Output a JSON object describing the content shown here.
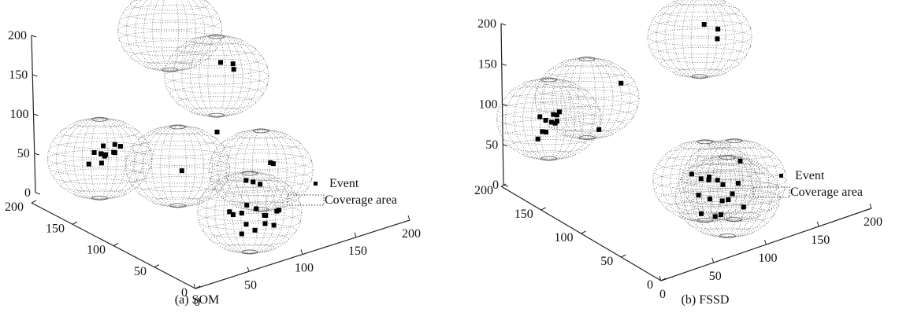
{
  "chart_data": [
    {
      "type": "scatter",
      "title": "",
      "caption": "(a) SOM",
      "axis_ticks": {
        "z": [
          "0",
          "50",
          "100",
          "150",
          "200"
        ],
        "y": [
          "0",
          "50",
          "100",
          "150",
          "200"
        ],
        "x": [
          "0",
          "50",
          "100",
          "150",
          "200"
        ]
      },
      "xlim": [
        0,
        200
      ],
      "ylim": [
        0,
        200
      ],
      "zlim": [
        0,
        200
      ],
      "legend": {
        "event_label": "Event",
        "coverage_label": "Coverage area",
        "position": "right"
      },
      "coverage_spheres": [
        {
          "x": 110,
          "y": 175,
          "z": 185
        },
        {
          "x": 10,
          "y": 130,
          "z": 90
        },
        {
          "x": 60,
          "y": 100,
          "z": 75
        },
        {
          "x": 130,
          "y": 90,
          "z": 45
        },
        {
          "x": 85,
          "y": 45,
          "z": 35
        },
        {
          "x": 165,
          "y": 190,
          "z": 95
        }
      ],
      "events": [
        {
          "x": 5,
          "y": 130,
          "z": 100
        },
        {
          "x": 10,
          "y": 128,
          "z": 97
        },
        {
          "x": 15,
          "y": 132,
          "z": 103
        },
        {
          "x": 20,
          "y": 126,
          "z": 96
        },
        {
          "x": 25,
          "y": 131,
          "z": 101
        },
        {
          "x": 8,
          "y": 125,
          "z": 88
        },
        {
          "x": 14,
          "y": 129,
          "z": 92
        },
        {
          "x": 18,
          "y": 133,
          "z": 90
        },
        {
          "x": 22,
          "y": 127,
          "z": 94
        },
        {
          "x": 3,
          "y": 134,
          "z": 84
        },
        {
          "x": 28,
          "y": 128,
          "z": 99
        },
        {
          "x": 12,
          "y": 131,
          "z": 95
        },
        {
          "x": 60,
          "y": 95,
          "z": 72
        },
        {
          "x": 112,
          "y": 120,
          "z": 85
        },
        {
          "x": 135,
          "y": 85,
          "z": 55
        },
        {
          "x": 115,
          "y": 80,
          "z": 42
        },
        {
          "x": 120,
          "y": 78,
          "z": 38
        },
        {
          "x": 110,
          "y": 82,
          "z": 45
        },
        {
          "x": 140,
          "y": 88,
          "z": 50
        },
        {
          "x": 70,
          "y": 50,
          "z": 40
        },
        {
          "x": 75,
          "y": 52,
          "z": 33
        },
        {
          "x": 80,
          "y": 48,
          "z": 35
        },
        {
          "x": 90,
          "y": 55,
          "z": 37
        },
        {
          "x": 100,
          "y": 45,
          "z": 25
        },
        {
          "x": 95,
          "y": 40,
          "z": 30
        },
        {
          "x": 70,
          "y": 35,
          "z": 20
        },
        {
          "x": 80,
          "y": 32,
          "z": 22
        },
        {
          "x": 88,
          "y": 30,
          "z": 28
        },
        {
          "x": 105,
          "y": 38,
          "z": 32
        },
        {
          "x": 110,
          "y": 42,
          "z": 29
        },
        {
          "x": 78,
          "y": 40,
          "z": 26
        },
        {
          "x": 95,
          "y": 50,
          "z": 33
        },
        {
          "x": 100,
          "y": 35,
          "z": 18
        },
        {
          "x": 165,
          "y": 185,
          "z": 115
        },
        {
          "x": 175,
          "y": 183,
          "z": 110
        },
        {
          "x": 178,
          "y": 186,
          "z": 100
        }
      ]
    },
    {
      "type": "scatter",
      "title": "",
      "caption": "(b) FSSD",
      "axis_ticks": {
        "z": [
          "0",
          "50",
          "100",
          "150",
          "200"
        ],
        "y": [
          "0",
          "50",
          "100",
          "150",
          "200"
        ],
        "x": [
          "0",
          "50",
          "100",
          "150",
          "200"
        ]
      },
      "xlim": [
        0,
        200
      ],
      "ylim": [
        0,
        200
      ],
      "zlim": [
        0,
        200
      ],
      "legend": {
        "event_label": "Event",
        "coverage_label": "Coverage area",
        "position": "right"
      },
      "coverage_spheres": [
        {
          "x": 15,
          "y": 160,
          "z": 100
        },
        {
          "x": 55,
          "y": 165,
          "z": 105
        },
        {
          "x": 95,
          "y": 70,
          "z": 40
        },
        {
          "x": 115,
          "y": 60,
          "z": 38
        },
        {
          "x": 105,
          "y": 55,
          "z": 25
        },
        {
          "x": 185,
          "y": 195,
          "z": 105
        }
      ],
      "events": [
        {
          "x": 8,
          "y": 162,
          "z": 105
        },
        {
          "x": 12,
          "y": 160,
          "z": 100
        },
        {
          "x": 16,
          "y": 158,
          "z": 97
        },
        {
          "x": 20,
          "y": 161,
          "z": 103
        },
        {
          "x": 25,
          "y": 163,
          "z": 99
        },
        {
          "x": 5,
          "y": 155,
          "z": 92
        },
        {
          "x": 10,
          "y": 157,
          "z": 88
        },
        {
          "x": 22,
          "y": 159,
          "z": 95
        },
        {
          "x": 28,
          "y": 164,
          "z": 101
        },
        {
          "x": 3,
          "y": 158,
          "z": 82
        },
        {
          "x": 18,
          "y": 156,
          "z": 96
        },
        {
          "x": 55,
          "y": 150,
          "z": 75
        },
        {
          "x": 95,
          "y": 175,
          "z": 100
        },
        {
          "x": 90,
          "y": 80,
          "z": 45
        },
        {
          "x": 95,
          "y": 75,
          "z": 40
        },
        {
          "x": 100,
          "y": 72,
          "z": 38
        },
        {
          "x": 105,
          "y": 78,
          "z": 36
        },
        {
          "x": 110,
          "y": 74,
          "z": 32
        },
        {
          "x": 112,
          "y": 70,
          "z": 28
        },
        {
          "x": 85,
          "y": 65,
          "z": 30
        },
        {
          "x": 92,
          "y": 60,
          "z": 25
        },
        {
          "x": 100,
          "y": 55,
          "z": 22
        },
        {
          "x": 108,
          "y": 58,
          "z": 18
        },
        {
          "x": 115,
          "y": 62,
          "z": 20
        },
        {
          "x": 80,
          "y": 55,
          "z": 15
        },
        {
          "x": 88,
          "y": 48,
          "z": 12
        },
        {
          "x": 95,
          "y": 50,
          "z": 10
        },
        {
          "x": 118,
          "y": 52,
          "z": 8
        },
        {
          "x": 125,
          "y": 68,
          "z": 25
        },
        {
          "x": 130,
          "y": 72,
          "z": 48
        },
        {
          "x": 190,
          "y": 196,
          "z": 118
        },
        {
          "x": 200,
          "y": 192,
          "z": 110
        },
        {
          "x": 198,
          "y": 190,
          "z": 100
        }
      ]
    }
  ]
}
